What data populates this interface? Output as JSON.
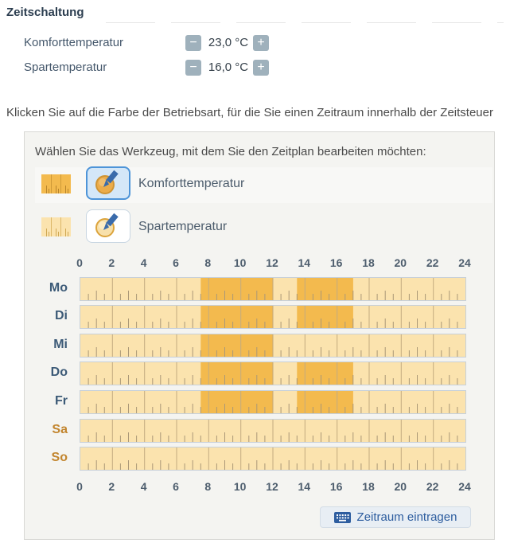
{
  "header": {
    "title": "Zeitschaltung"
  },
  "temperature_settings": [
    {
      "label": "Komforttemperatur",
      "value": "23,0 °C",
      "minus_icon": "−",
      "plus_icon": "+"
    },
    {
      "label": "Spartemperatur",
      "value": "16,0 °C",
      "minus_icon": "−",
      "plus_icon": "+"
    }
  ],
  "instruction": "Klicken Sie auf die Farbe der Betriebsart, für die Sie einen Zeitraum innerhalb der Zeitsteuer",
  "panel": {
    "prompt": "Wählen Sie das Werkzeug, mit dem Sie den Zeitplan bearbeiten möchten:",
    "tools": [
      {
        "label": "Komforttemperatur",
        "selected": true,
        "swatch_color": "#f3ba4e",
        "icon": "pencil-icon"
      },
      {
        "label": "Spartemperatur",
        "selected": false,
        "swatch_color": "#fbe3ae",
        "icon": "pencil-icon"
      }
    ],
    "action_button": {
      "label": "Zeitraum eintragen",
      "icon": "keyboard-icon"
    }
  },
  "chart_data": {
    "type": "heatmap",
    "x_axis": {
      "range": [
        0,
        24
      ],
      "unit": "hours",
      "ticks": [
        0,
        2,
        4,
        6,
        8,
        10,
        12,
        14,
        16,
        18,
        20,
        22,
        24
      ],
      "shown": "top and bottom",
      "tick_minor": 0.5
    },
    "legend": [
      {
        "name": "Komforttemperatur",
        "color": "#f3ba4e"
      },
      {
        "name": "Spartemperatur",
        "color": "#fbe3ae"
      }
    ],
    "rows": [
      {
        "day": "Mo",
        "weekend": false,
        "komfort_segments": [
          [
            7.5,
            12
          ],
          [
            13.5,
            17
          ]
        ]
      },
      {
        "day": "Di",
        "weekend": false,
        "komfort_segments": [
          [
            7.5,
            12
          ],
          [
            13.5,
            17
          ]
        ]
      },
      {
        "day": "Mi",
        "weekend": false,
        "komfort_segments": [
          [
            7.5,
            12
          ]
        ]
      },
      {
        "day": "Do",
        "weekend": false,
        "komfort_segments": [
          [
            7.5,
            12
          ],
          [
            13.5,
            17
          ]
        ]
      },
      {
        "day": "Fr",
        "weekend": false,
        "komfort_segments": [
          [
            7.5,
            12
          ],
          [
            13.5,
            17
          ]
        ]
      },
      {
        "day": "Sa",
        "weekend": true,
        "komfort_segments": []
      },
      {
        "day": "So",
        "weekend": true,
        "komfort_segments": []
      }
    ]
  },
  "colors": {
    "komfort": "#f3ba4e",
    "spar": "#fbe3ae",
    "grid_line": "#c3ab80",
    "tick_line": "#ab9877",
    "accent_blue": "#4d94d8",
    "button_text": "#2d5d9f",
    "weekday_label": "#3c5a77",
    "weekend_label": "#c2852e"
  }
}
